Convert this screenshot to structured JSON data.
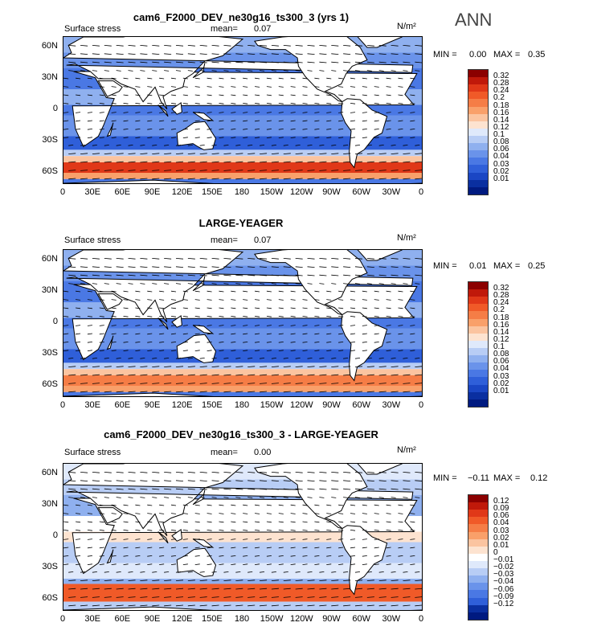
{
  "ann_label": "ANN",
  "units": "N/m²",
  "lon_labels": [
    "0",
    "30E",
    "60E",
    "90E",
    "120E",
    "150E",
    "180",
    "150W",
    "120W",
    "90W",
    "60W",
    "30W",
    "0"
  ],
  "lat_labels": [
    "60N",
    "30N",
    "0",
    "30S",
    "60S"
  ],
  "panels": [
    {
      "title": "cam6_F2000_DEV_ne30g16_ts300_3 (yrs 1)",
      "var": "Surface stress",
      "mean_label": "mean=",
      "mean_value": "0.07",
      "min_label": "MIN =",
      "min_value": "0.00",
      "max_label": "MAX =",
      "max_value": "0.35",
      "colors": [
        "#8b0000",
        "#c0190a",
        "#e03818",
        "#f05a28",
        "#f57d46",
        "#f9a06a",
        "#fbc4a0",
        "#fde3d0",
        "#dfe9fb",
        "#b8cdf5",
        "#8fb0ef",
        "#6a93ea",
        "#4a78e4",
        "#2f5fd9",
        "#1a46c4",
        "#0a2fa0",
        "#001a80"
      ],
      "levels": [
        "0.32",
        "0.28",
        "0.24",
        "0.2",
        "0.18",
        "0.16",
        "0.14",
        "0.12",
        "0.1",
        "0.08",
        "0.06",
        "0.04",
        "0.03",
        "0.02",
        "0.01"
      ]
    },
    {
      "title": "LARGE-YEAGER",
      "var": "Surface stress",
      "mean_label": "mean=",
      "mean_value": "0.07",
      "min_label": "MIN =",
      "min_value": "0.01",
      "max_label": "MAX =",
      "max_value": "0.25",
      "colors": [
        "#8b0000",
        "#c0190a",
        "#e03818",
        "#f05a28",
        "#f57d46",
        "#f9a06a",
        "#fbc4a0",
        "#fde3d0",
        "#dfe9fb",
        "#b8cdf5",
        "#8fb0ef",
        "#6a93ea",
        "#4a78e4",
        "#2f5fd9",
        "#1a46c4",
        "#0a2fa0",
        "#001a80"
      ],
      "levels": [
        "0.32",
        "0.28",
        "0.24",
        "0.2",
        "0.18",
        "0.16",
        "0.14",
        "0.12",
        "0.1",
        "0.08",
        "0.06",
        "0.04",
        "0.03",
        "0.02",
        "0.01"
      ]
    },
    {
      "title": "cam6_F2000_DEV_ne30g16_ts300_3 - LARGE-YEAGER",
      "var": "Surface stress",
      "mean_label": "mean=",
      "mean_value": "0.00",
      "min_label": "MIN =",
      "min_value": "−0.11",
      "max_label": "MAX =",
      "max_value": "0.12",
      "colors": [
        "#8b0000",
        "#c0190a",
        "#e03818",
        "#f05a28",
        "#f57d46",
        "#f9a06a",
        "#fbc4a0",
        "#fde3d0",
        "#ffffff",
        "#dfe9fb",
        "#b8cdf5",
        "#8fb0ef",
        "#6a93ea",
        "#4a78e4",
        "#2f5fd9",
        "#0a2fa0",
        "#001a80"
      ],
      "levels": [
        "0.12",
        "0.09",
        "0.06",
        "0.04",
        "0.03",
        "0.02",
        "0.01",
        "0",
        "−0.01",
        "−0.02",
        "−0.03",
        "−0.04",
        "−0.06",
        "−0.09",
        "−0.12"
      ]
    }
  ],
  "chart_data": {
    "type": "heatmap",
    "title": "Surface stress",
    "xlabel": "",
    "ylabel": "",
    "units": "N/m²",
    "x_ticks": [
      "0",
      "30E",
      "60E",
      "90E",
      "120E",
      "150E",
      "180",
      "150W",
      "120W",
      "90W",
      "60W",
      "30W",
      "0"
    ],
    "y_ticks": [
      "60N",
      "30N",
      "0",
      "30S",
      "60S"
    ],
    "panels": [
      {
        "title": "cam6_F2000_DEV_ne30g16_ts300_3 (yrs 1)",
        "mean": 0.07,
        "min": 0.0,
        "max": 0.35
      },
      {
        "title": "LARGE-YEAGER",
        "mean": 0.07,
        "min": 0.01,
        "max": 0.25
      },
      {
        "title": "cam6_F2000_DEV_ne30g16_ts300_3 - LARGE-YEAGER",
        "mean": 0.0,
        "min": -0.11,
        "max": 0.12
      }
    ]
  }
}
